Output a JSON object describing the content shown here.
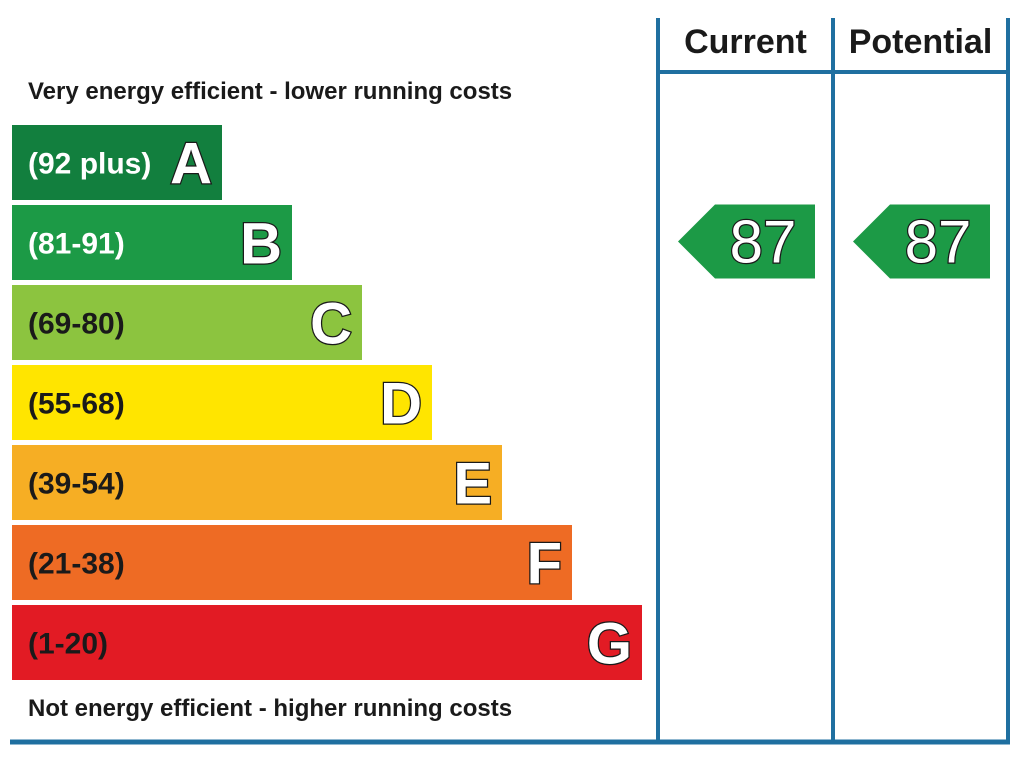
{
  "chart_data": {
    "type": "bar",
    "top_caption": "Very energy efficient - lower running costs",
    "bottom_caption": "Not energy efficient - higher running costs",
    "bands": [
      {
        "letter": "A",
        "range": "(92 plus)",
        "color": "#127f3e",
        "text_dark": false
      },
      {
        "letter": "B",
        "range": "(81-91)",
        "color": "#1c9a46",
        "text_dark": false
      },
      {
        "letter": "C",
        "range": "(69-80)",
        "color": "#8cc43f",
        "text_dark": true
      },
      {
        "letter": "D",
        "range": "(55-68)",
        "color": "#ffe500",
        "text_dark": true
      },
      {
        "letter": "E",
        "range": "(39-54)",
        "color": "#f6ae24",
        "text_dark": true
      },
      {
        "letter": "F",
        "range": "(21-38)",
        "color": "#ee6b24",
        "text_dark": true
      },
      {
        "letter": "G",
        "range": "(1-20)",
        "color": "#e21b24",
        "text_dark": true
      }
    ],
    "columns": [
      {
        "header": "Current",
        "value": 87,
        "band": "B"
      },
      {
        "header": "Potential",
        "value": 87,
        "band": "B"
      }
    ],
    "arrow_color": "#1c9a46",
    "frame_color": "#1f6fa0"
  }
}
